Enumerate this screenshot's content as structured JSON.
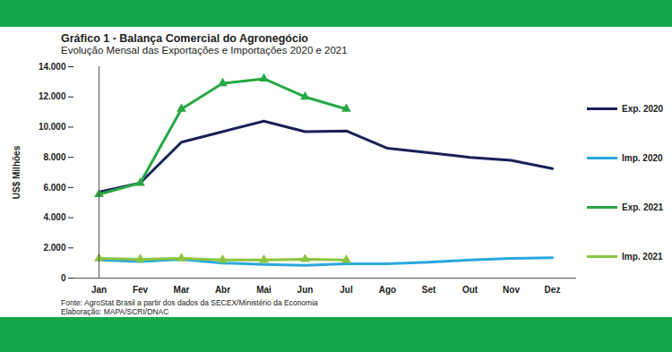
{
  "chart_data": {
    "type": "line",
    "title": "Gráfico 1 - Balança Comercial do Agronegócio",
    "subtitle": "Evolução Mensal das Exportações e Importações 2020 e 2021",
    "y_label": "US$ Milhões",
    "source": [
      "Fonte: AgroStat Brasil a partir dos dados da SECEX/Ministério da Economia",
      "Elaboração: MAPA/SCRI/DNAC"
    ],
    "categories": [
      "Jan",
      "Fev",
      "Mar",
      "Abr",
      "Mai",
      "Jun",
      "Jul",
      "Ago",
      "Set",
      "Out",
      "Nov",
      "Dez"
    ],
    "series": [
      {
        "name": "Exp. 2020",
        "color": "#1a2157",
        "values": [
          5700,
          6300,
          9000,
          9700,
          10400,
          9700,
          9750,
          8600,
          8300,
          8000,
          7800,
          7250
        ]
      },
      {
        "name": "Imp. 2020",
        "color": "#29a8e0",
        "values": [
          1200,
          1100,
          1250,
          1000,
          900,
          850,
          950,
          950,
          1050,
          1200,
          1300,
          1350
        ]
      },
      {
        "name": "Exp. 2021",
        "color": "#27a844",
        "marker": "triangle",
        "values": [
          5550,
          6300,
          11200,
          12900,
          13200,
          12000,
          11200,
          null,
          null,
          null,
          null,
          null
        ]
      },
      {
        "name": "Imp. 2021",
        "color": "#8cc63f",
        "marker": "triangle",
        "values": [
          1300,
          1250,
          1300,
          1200,
          1200,
          1250,
          1200,
          null,
          null,
          null,
          null,
          null
        ]
      }
    ],
    "ylim": [
      0,
      14000
    ],
    "yticks": [
      0,
      {
        "value": 2000,
        "label": "2.000"
      },
      {
        "value": 4000,
        "label": "4.000"
      },
      {
        "value": 6000,
        "label": "6.000"
      },
      {
        "value": 8000,
        "label": "8.000"
      },
      {
        "value": 10000,
        "label": "10.000"
      },
      {
        "value": 12000,
        "label": "12.000"
      },
      {
        "value": 14000,
        "label": "14.000"
      }
    ],
    "grid": false,
    "legend": "right"
  }
}
